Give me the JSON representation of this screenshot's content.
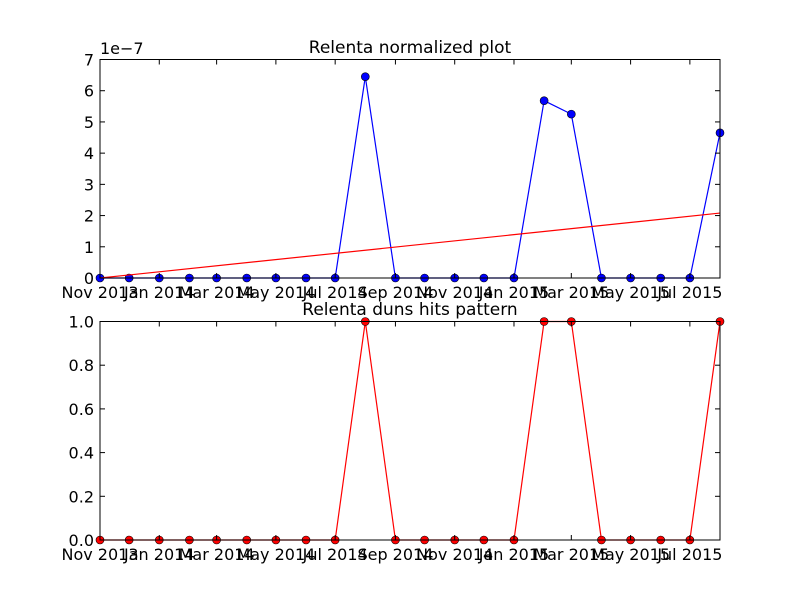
{
  "chart_data": [
    {
      "type": "line",
      "title": "Relenta normalized plot",
      "xlabel": "",
      "ylabel": "",
      "offset_text": "1e−7",
      "xlim": [
        "2013-11-01",
        "2015-08-01"
      ],
      "ylim": [
        0,
        7
      ],
      "yticks": [
        0,
        1,
        2,
        3,
        4,
        5,
        6,
        7
      ],
      "ytick_labels": [
        "0",
        "1",
        "2",
        "3",
        "4",
        "5",
        "6",
        "7"
      ],
      "xticks": [
        "2013-11-01",
        "2014-01-01",
        "2014-03-01",
        "2014-05-01",
        "2014-07-01",
        "2014-09-01",
        "2014-11-01",
        "2015-01-01",
        "2015-03-01",
        "2015-05-01",
        "2015-07-01"
      ],
      "xtick_labels": [
        "Nov 2013",
        "Jan 2014",
        "Mar 2014",
        "May 2014",
        "Jul 2014",
        "Sep 2014",
        "Nov 2014",
        "Jan 2015",
        "Mar 2015",
        "May 2015",
        "Jul 2015"
      ],
      "grid": false,
      "series": [
        {
          "color": "#0000ff",
          "marker": "circle",
          "x": [
            "2013-11-01",
            "2013-12-01",
            "2014-01-01",
            "2014-02-01",
            "2014-03-01",
            "2014-04-01",
            "2014-05-01",
            "2014-06-01",
            "2014-07-01",
            "2014-08-01",
            "2014-09-01",
            "2014-10-01",
            "2014-11-01",
            "2014-12-01",
            "2015-01-01",
            "2015-02-01",
            "2015-03-01",
            "2015-04-01",
            "2015-05-01",
            "2015-06-01",
            "2015-07-01",
            "2015-08-01"
          ],
          "y": [
            0,
            0,
            0,
            0,
            0,
            0,
            0,
            0,
            0,
            6.45,
            0,
            0,
            0,
            0,
            0,
            5.68,
            5.25,
            0,
            0,
            0,
            0,
            4.65
          ]
        },
        {
          "color": "#ff0000",
          "marker": "none",
          "x": [
            "2013-11-01",
            "2015-08-01"
          ],
          "y": [
            0,
            2.08
          ]
        }
      ]
    },
    {
      "type": "line",
      "title": "Relenta duns hits pattern",
      "xlabel": "",
      "ylabel": "",
      "xlim": [
        "2013-11-01",
        "2015-08-01"
      ],
      "ylim": [
        0,
        1
      ],
      "yticks": [
        0,
        0.2,
        0.4,
        0.6,
        0.8,
        1.0
      ],
      "ytick_labels": [
        "0.0",
        "0.2",
        "0.4",
        "0.6",
        "0.8",
        "1.0"
      ],
      "xticks": [
        "2013-11-01",
        "2014-01-01",
        "2014-03-01",
        "2014-05-01",
        "2014-07-01",
        "2014-09-01",
        "2014-11-01",
        "2015-01-01",
        "2015-03-01",
        "2015-05-01",
        "2015-07-01"
      ],
      "xtick_labels": [
        "Nov 2013",
        "Jan 2014",
        "Mar 2014",
        "May 2014",
        "Jul 2014",
        "Sep 2014",
        "Nov 2014",
        "Jan 2015",
        "Mar 2015",
        "May 2015",
        "Jul 2015"
      ],
      "grid": false,
      "series": [
        {
          "color": "#ff0000",
          "marker": "circle",
          "x": [
            "2013-11-01",
            "2013-12-01",
            "2014-01-01",
            "2014-02-01",
            "2014-03-01",
            "2014-04-01",
            "2014-05-01",
            "2014-06-01",
            "2014-07-01",
            "2014-08-01",
            "2014-09-01",
            "2014-10-01",
            "2014-11-01",
            "2014-12-01",
            "2015-01-01",
            "2015-02-01",
            "2015-03-01",
            "2015-04-01",
            "2015-05-01",
            "2015-06-01",
            "2015-07-01",
            "2015-08-01"
          ],
          "y": [
            0,
            0,
            0,
            0,
            0,
            0,
            0,
            0,
            0,
            1,
            0,
            0,
            0,
            0,
            0,
            1,
            1,
            0,
            0,
            0,
            0,
            1
          ]
        }
      ]
    }
  ]
}
